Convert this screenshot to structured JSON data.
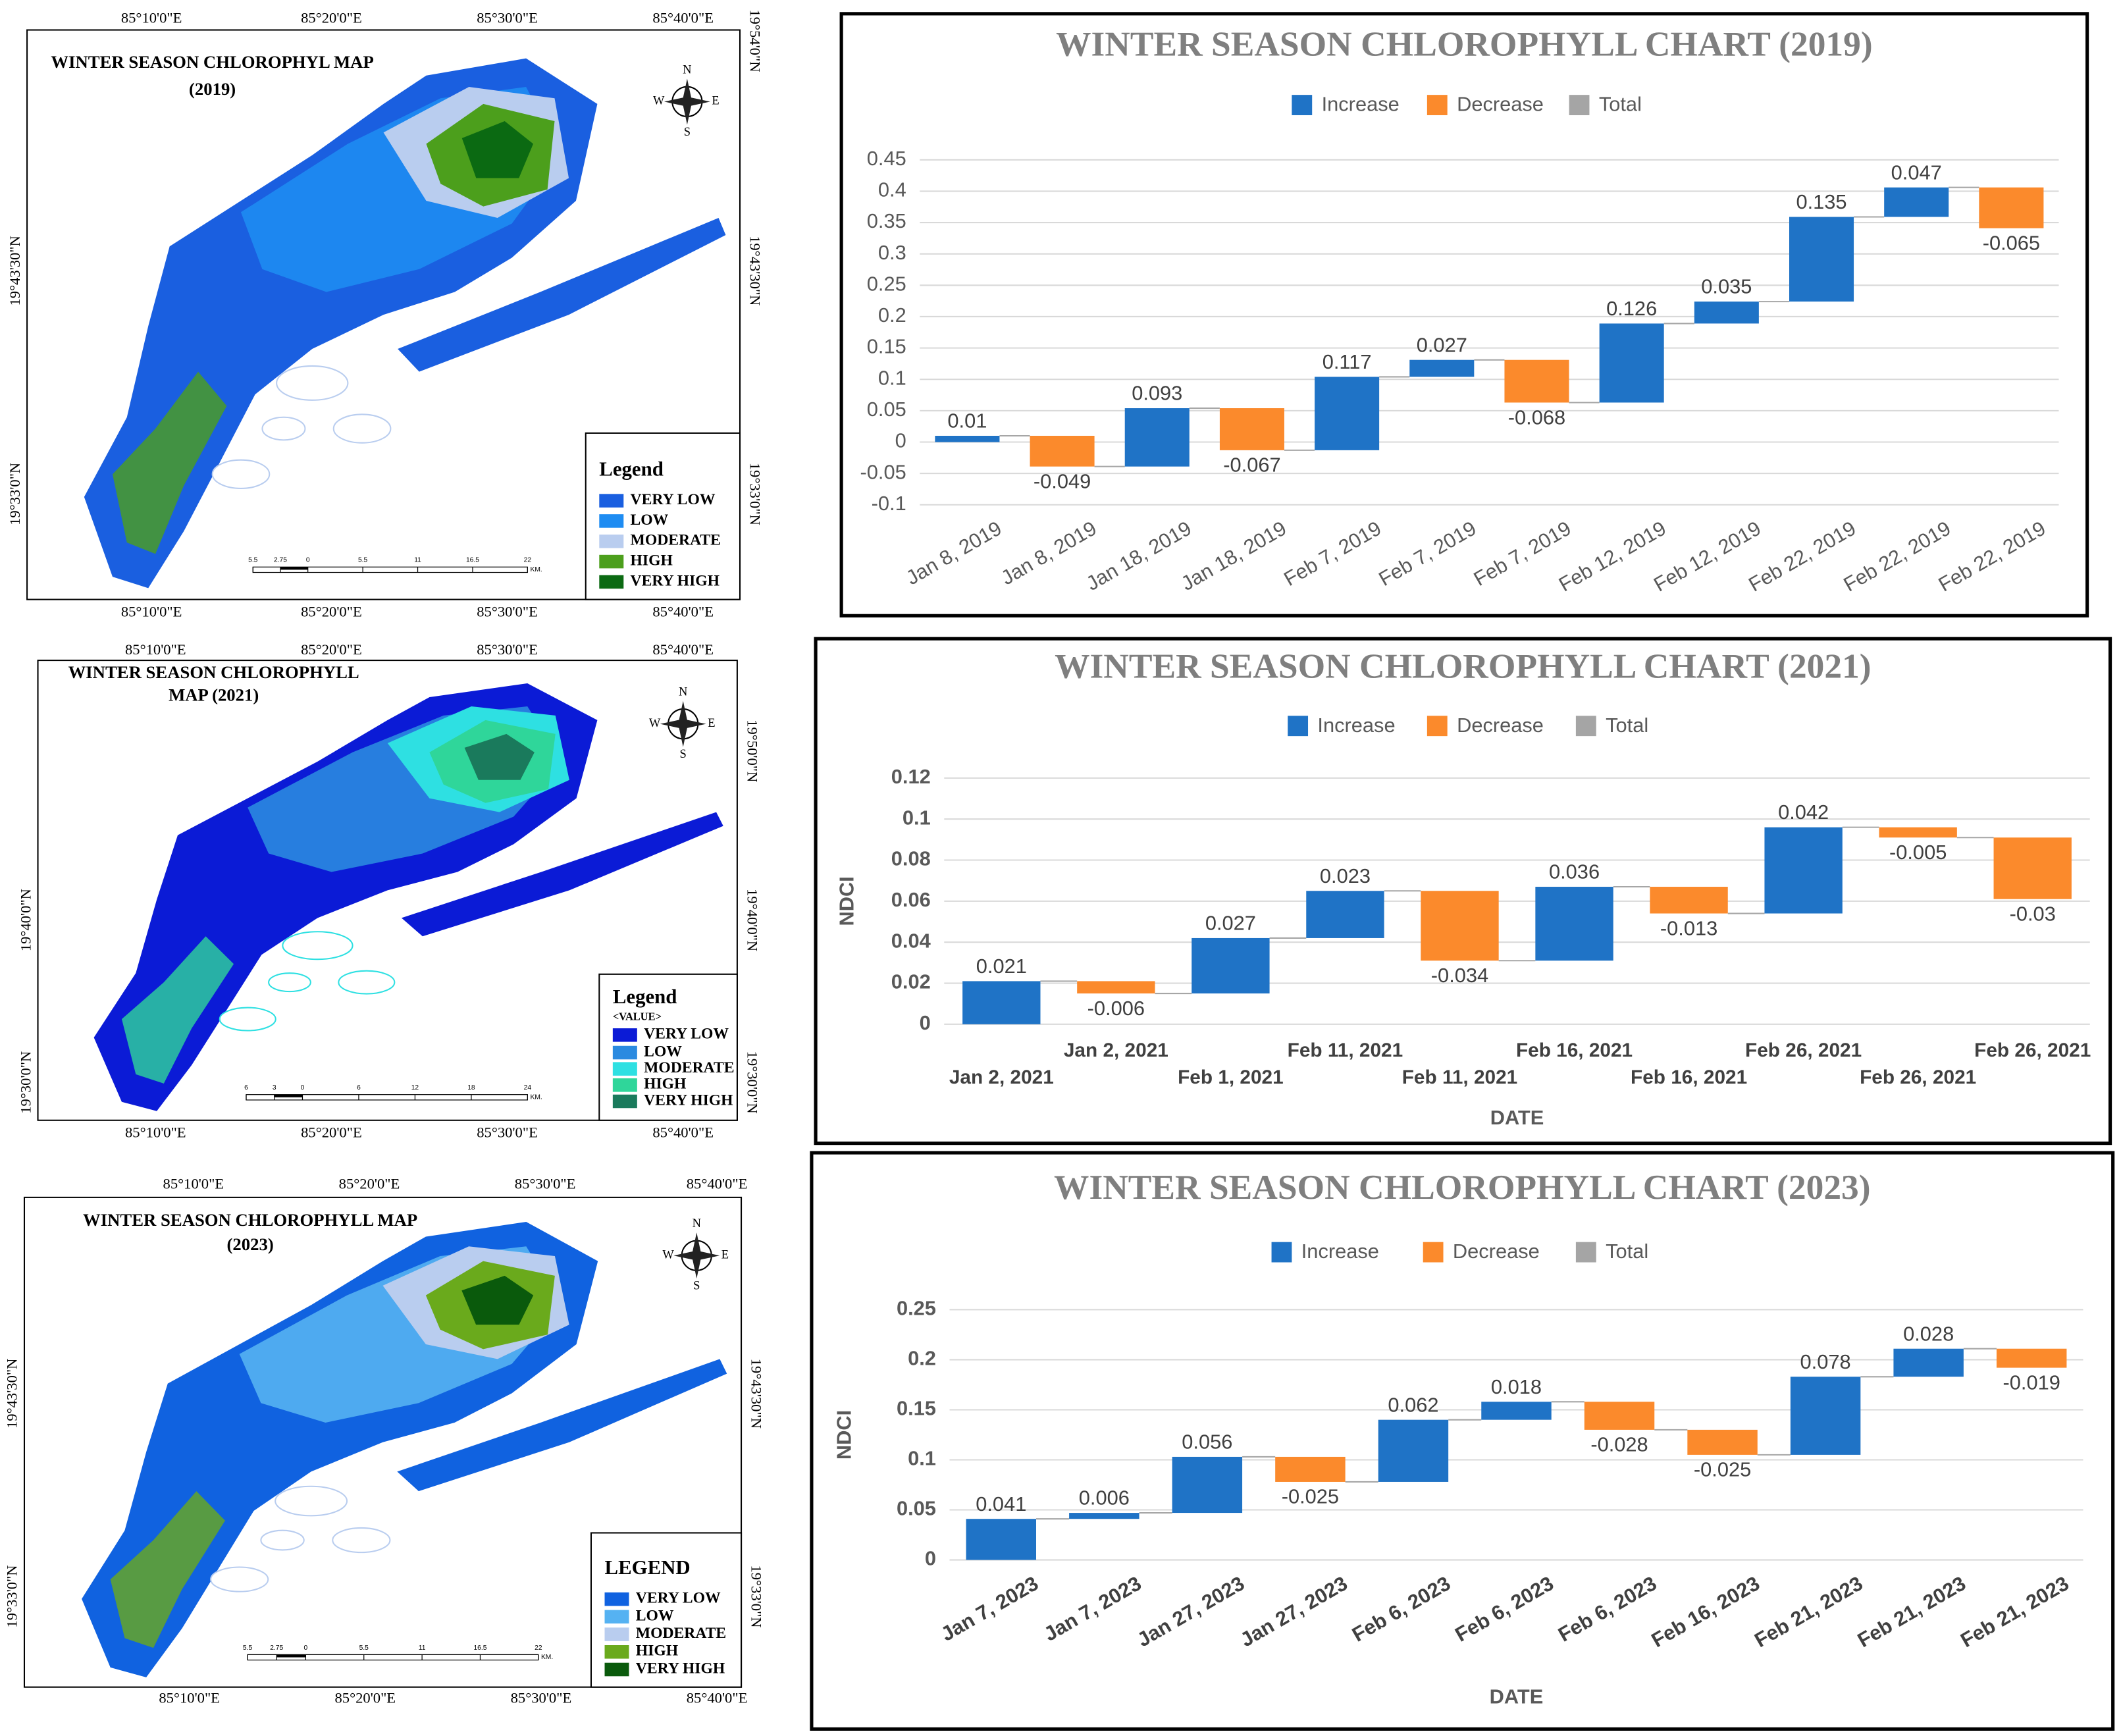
{
  "maps": [
    {
      "title": [
        "WINTER SEASON CHLOROPHYL MAP",
        "(2019)"
      ],
      "top_labels": [
        "85°10'0\"E",
        "85°20'0\"E",
        "85°30'0\"E",
        "85°40'0\"E"
      ],
      "bottom_labels": [
        "85°10'0\"E",
        "85°20'0\"E",
        "85°30'0\"E",
        "85°40'0\"E"
      ],
      "left_labels": [
        "19°43'30\"N",
        "19°33'0\"N"
      ],
      "right_labels": [
        "19°54'0\"N",
        "19°43'30\"N",
        "19°33'0\"N"
      ],
      "compass": [
        "N",
        "E",
        "S",
        "W"
      ],
      "legend_title": "Legend",
      "legend": [
        {
          "name": "VERY LOW",
          "color": "#1a5fe0"
        },
        {
          "name": "LOW",
          "color": "#1e8cf2"
        },
        {
          "name": "MODERATE",
          "color": "#b9cdef"
        },
        {
          "name": "HIGH",
          "color": "#4c9f1c"
        },
        {
          "name": "VERY HIGH",
          "color": "#0b6a12"
        }
      ],
      "scale": [
        5.5,
        2.75,
        0,
        5.5,
        11,
        16.5,
        22
      ],
      "scale_unit": "KM."
    },
    {
      "title": [
        "WINTER SEASON CHLOROPHYLL",
        "MAP (2021)"
      ],
      "top_labels": [
        "85°10'0\"E",
        "85°20'0\"E",
        "85°30'0\"E",
        "85°40'0\"E"
      ],
      "bottom_labels": [
        "85°10'0\"E",
        "85°20'0\"E",
        "85°30'0\"E",
        "85°40'0\"E"
      ],
      "left_labels": [
        "19°40'0\"N",
        "19°30'0\"N"
      ],
      "right_labels": [
        "19°50'0\"N",
        "19°40'0\"N",
        "19°30'0\"N"
      ],
      "compass": [
        "N",
        "E",
        "S",
        "W"
      ],
      "legend_title": "Legend",
      "legend_subtitle": "<VALUE>",
      "legend": [
        {
          "name": "VERY LOW",
          "color": "#0b1bd6"
        },
        {
          "name": "LOW",
          "color": "#2a8ae0"
        },
        {
          "name": "MODERATE",
          "color": "#2ee0e2"
        },
        {
          "name": "HIGH",
          "color": "#2fd69a"
        },
        {
          "name": "VERY HIGH",
          "color": "#1a7a5c"
        }
      ],
      "scale": [
        6,
        3,
        0,
        6,
        12,
        18,
        24
      ],
      "scale_unit": "KM."
    },
    {
      "title": [
        "WINTER SEASON CHLOROPHYLL MAP",
        "(2023)"
      ],
      "top_labels": [
        "85°10'0\"E",
        "85°20'0\"E",
        "85°30'0\"E",
        "85°40'0\"E"
      ],
      "bottom_labels": [
        "85°10'0\"E",
        "85°20'0\"E",
        "85°30'0\"E",
        "85°40'0\"E"
      ],
      "left_labels": [
        "19°43'30\"N",
        "19°33'0\"N"
      ],
      "right_labels": [
        "19°43'30\"N",
        "19°33'0\"N"
      ],
      "compass": [
        "N",
        "E",
        "S",
        "W"
      ],
      "legend_title": "LEGEND",
      "legend": [
        {
          "name": "VERY LOW",
          "color": "#1062e0"
        },
        {
          "name": "LOW",
          "color": "#55b2f2"
        },
        {
          "name": "MODERATE",
          "color": "#b9cdef"
        },
        {
          "name": "HIGH",
          "color": "#6aaa1c"
        },
        {
          "name": "VERY HIGH",
          "color": "#0a5a0c"
        }
      ],
      "scale": [
        5.5,
        2.75,
        0,
        5.5,
        11,
        16.5,
        22
      ],
      "scale_unit": "KM."
    }
  ],
  "chart_data": [
    {
      "type": "waterfall",
      "title": "WINTER SEASON CHLOROPHYLL CHART (2019)",
      "legend": [
        {
          "name": "Increase",
          "color": "#1f73c6"
        },
        {
          "name": "Decrease",
          "color": "#fb8a2c"
        },
        {
          "name": "Total",
          "color": "#a5a5a5"
        }
      ],
      "categories": [
        "Jan 8, 2019",
        "Jan 8, 2019",
        "Jan 18, 2019",
        "Jan 18, 2019",
        "Feb 7, 2019",
        "Feb 7, 2019",
        "Feb 7, 2019",
        "Feb 12, 2019",
        "Feb 12, 2019",
        "Feb 22, 2019",
        "Feb 22, 2019",
        "Feb 22, 2019"
      ],
      "values": [
        0.01,
        -0.049,
        0.093,
        -0.067,
        0.117,
        0.027,
        -0.068,
        0.126,
        0.035,
        0.135,
        0.047,
        -0.065
      ],
      "ylim": [
        -0.1,
        0.45
      ],
      "yticks": [
        -0.1,
        -0.05,
        0,
        0.05,
        0.1,
        0.15,
        0.2,
        0.25,
        0.3,
        0.35,
        0.4,
        0.45
      ],
      "grid": true
    },
    {
      "type": "waterfall",
      "title": "WINTER SEASON CHLOROPHYLL CHART (2021)",
      "legend": [
        {
          "name": "Increase",
          "color": "#1f73c6"
        },
        {
          "name": "Decrease",
          "color": "#fb8a2c"
        },
        {
          "name": "Total",
          "color": "#a5a5a5"
        }
      ],
      "y_label": "NDCI",
      "x_label": "DATE",
      "categories": [
        "Jan 2, 2021",
        "Jan 2, 2021",
        "Feb 1, 2021",
        "Feb 11, 2021",
        "Feb 11, 2021",
        "Feb 16, 2021",
        "Feb 16, 2021",
        "Feb 26, 2021",
        "Feb 26, 2021",
        "Feb 26, 2021"
      ],
      "values": [
        0.021,
        -0.006,
        0.027,
        0.023,
        -0.034,
        0.036,
        -0.013,
        0.042,
        -0.005,
        -0.03
      ],
      "ylim": [
        0,
        0.12
      ],
      "yticks": [
        0,
        0.02,
        0.04,
        0.06,
        0.08,
        0.1,
        0.12
      ],
      "grid": true
    },
    {
      "type": "waterfall",
      "title": "WINTER SEASON CHLOROPHYLL CHART (2023)",
      "legend": [
        {
          "name": "Increase",
          "color": "#1f73c6"
        },
        {
          "name": "Decrease",
          "color": "#fb8a2c"
        },
        {
          "name": "Total",
          "color": "#a5a5a5"
        }
      ],
      "y_label": "NDCI",
      "x_label": "DATE",
      "categories": [
        "Jan 7, 2023",
        "Jan 7, 2023",
        "Jan 27, 2023",
        "Jan 27, 2023",
        "Feb 6, 2023",
        "Feb 6, 2023",
        "Feb 6, 2023",
        "Feb 16, 2023",
        "Feb 21, 2023",
        "Feb 21, 2023",
        "Feb 21, 2023"
      ],
      "values": [
        0.041,
        0.006,
        0.056,
        -0.025,
        0.062,
        0.018,
        -0.028,
        -0.025,
        0.078,
        0.028,
        -0.019
      ],
      "ylim": [
        0,
        0.25
      ],
      "yticks": [
        0,
        0.05,
        0.1,
        0.15,
        0.2,
        0.25
      ],
      "grid": true
    }
  ]
}
